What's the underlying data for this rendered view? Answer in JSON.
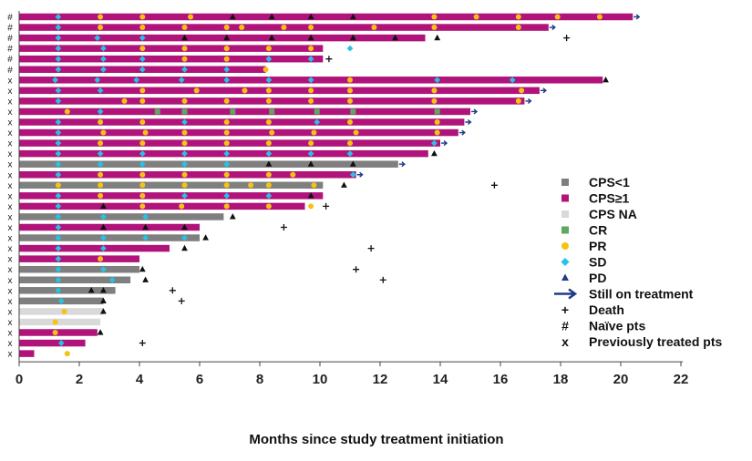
{
  "chart_data": {
    "type": "swimmer",
    "title": "",
    "xlabel": "Months since study treatment initiation",
    "ylabel": "",
    "xlim": [
      0,
      22
    ],
    "xticks": [
      0,
      2,
      4,
      6,
      8,
      10,
      12,
      14,
      16,
      18,
      20,
      22
    ],
    "grid": false,
    "legend_position": "right",
    "colors": {
      "cps_lt1": "#7f7f7f",
      "cps_ge1": "#b0137a",
      "cps_na": "#d9d9d9",
      "cr": "#5fa85f",
      "pr": "#f6c313",
      "sd": "#27c3e6",
      "pd": "#1f3c88",
      "arrow": "#1f3c88",
      "death": "#111111",
      "pd_on_bar": "#111111"
    },
    "legend": [
      {
        "key": "cps_lt1",
        "label": "CPS<1",
        "kind": "square"
      },
      {
        "key": "cps_ge1",
        "label": "CPS≥1",
        "kind": "square"
      },
      {
        "key": "cps_na",
        "label": "CPS NA",
        "kind": "square"
      },
      {
        "key": "cr",
        "label": "CR",
        "kind": "square"
      },
      {
        "key": "pr",
        "label": "PR",
        "kind": "circle"
      },
      {
        "key": "sd",
        "label": "SD",
        "kind": "diamond"
      },
      {
        "key": "pd",
        "label": "PD",
        "kind": "triangle"
      },
      {
        "key": "arrow",
        "label": "Still on treatment",
        "kind": "arrow"
      },
      {
        "key": "death",
        "label": "Death",
        "kind": "plus",
        "symbol": "+"
      },
      {
        "key": "naive",
        "label": "Naïve pts",
        "kind": "text",
        "symbol": "#"
      },
      {
        "key": "prev",
        "label": "Previously treated pts",
        "kind": "text",
        "symbol": "x"
      }
    ],
    "patients": [
      {
        "label": "#",
        "cps": "cps_ge1",
        "end": 20.4,
        "ongoing": true,
        "death": null,
        "events": [
          [
            "sd",
            1.3
          ],
          [
            "pr",
            2.7
          ],
          [
            "pr",
            4.1
          ],
          [
            "pr",
            5.7
          ],
          [
            "pd",
            7.1
          ],
          [
            "pd",
            8.4
          ],
          [
            "pd",
            9.7
          ],
          [
            "pd",
            11.1
          ],
          [
            "pr",
            13.8
          ],
          [
            "pr",
            15.2
          ],
          [
            "pr",
            16.6
          ],
          [
            "pr",
            17.9
          ],
          [
            "pr",
            19.3
          ]
        ]
      },
      {
        "label": "#",
        "cps": "cps_ge1",
        "end": 17.6,
        "ongoing": true,
        "death": null,
        "events": [
          [
            "sd",
            1.3
          ],
          [
            "pr",
            2.7
          ],
          [
            "pr",
            4.1
          ],
          [
            "pr",
            5.5
          ],
          [
            "pr",
            6.9
          ],
          [
            "pr",
            7.4
          ],
          [
            "pr",
            8.8
          ],
          [
            "pr",
            9.7
          ],
          [
            "pr",
            11.8
          ],
          [
            "pr",
            13.8
          ],
          [
            "pr",
            16.6
          ]
        ]
      },
      {
        "label": "#",
        "cps": "cps_ge1",
        "end": 13.5,
        "ongoing": false,
        "death": 18.2,
        "events": [
          [
            "sd",
            1.3
          ],
          [
            "sd",
            2.6
          ],
          [
            "sd",
            4.1
          ],
          [
            "pd",
            5.5
          ],
          [
            "pd",
            6.9
          ],
          [
            "pd",
            8.4
          ],
          [
            "pd",
            9.7
          ],
          [
            "pd",
            11.1
          ],
          [
            "pd",
            12.5
          ],
          [
            "pd",
            13.9
          ]
        ]
      },
      {
        "label": "#",
        "cps": "cps_ge1",
        "end": 10.1,
        "ongoing": false,
        "death": null,
        "events": [
          [
            "sd",
            1.3
          ],
          [
            "sd",
            2.8
          ],
          [
            "pr",
            4.1
          ],
          [
            "pr",
            5.5
          ],
          [
            "pr",
            6.9
          ],
          [
            "pr",
            8.3
          ],
          [
            "pr",
            9.7
          ],
          [
            "sd",
            11.0
          ]
        ]
      },
      {
        "label": "#",
        "cps": "cps_ge1",
        "end": 10.1,
        "ongoing": false,
        "death": 10.3,
        "events": [
          [
            "sd",
            1.3
          ],
          [
            "sd",
            2.8
          ],
          [
            "sd",
            4.1
          ],
          [
            "pr",
            5.5
          ],
          [
            "pr",
            6.9
          ],
          [
            "sd",
            8.3
          ],
          [
            "sd",
            9.7
          ]
        ]
      },
      {
        "label": "#",
        "cps": "cps_ge1",
        "end": 8.2,
        "ongoing": false,
        "death": null,
        "events": [
          [
            "sd",
            1.3
          ],
          [
            "sd",
            2.8
          ],
          [
            "sd",
            4.1
          ],
          [
            "sd",
            5.5
          ],
          [
            "sd",
            6.9
          ],
          [
            "pr",
            8.2
          ]
        ]
      },
      {
        "label": "x",
        "cps": "cps_ge1",
        "end": 19.4,
        "ongoing": false,
        "death": null,
        "events": [
          [
            "sd",
            1.2
          ],
          [
            "sd",
            2.6
          ],
          [
            "sd",
            3.9
          ],
          [
            "sd",
            5.4
          ],
          [
            "sd",
            6.9
          ],
          [
            "sd",
            8.3
          ],
          [
            "sd",
            9.7
          ],
          [
            "pr",
            11.0
          ],
          [
            "sd",
            13.9
          ],
          [
            "sd",
            16.4
          ],
          [
            "pd",
            19.5
          ]
        ]
      },
      {
        "label": "x",
        "cps": "cps_ge1",
        "end": 17.3,
        "ongoing": true,
        "death": null,
        "events": [
          [
            "sd",
            1.3
          ],
          [
            "sd",
            2.7
          ],
          [
            "pr",
            4.1
          ],
          [
            "pr",
            5.9
          ],
          [
            "pr",
            7.5
          ],
          [
            "pr",
            8.3
          ],
          [
            "pr",
            9.7
          ],
          [
            "pr",
            11.0
          ],
          [
            "pr",
            13.8
          ],
          [
            "pr",
            16.7
          ]
        ]
      },
      {
        "label": "x",
        "cps": "cps_ge1",
        "end": 16.8,
        "ongoing": true,
        "death": null,
        "events": [
          [
            "sd",
            1.3
          ],
          [
            "pr",
            3.5
          ],
          [
            "pr",
            4.1
          ],
          [
            "pr",
            5.5
          ],
          [
            "pr",
            6.9
          ],
          [
            "pr",
            8.3
          ],
          [
            "pr",
            9.7
          ],
          [
            "pr",
            11.0
          ],
          [
            "pr",
            13.8
          ],
          [
            "pr",
            16.6
          ]
        ]
      },
      {
        "label": "x",
        "cps": "cps_ge1",
        "end": 15.0,
        "ongoing": true,
        "death": null,
        "events": [
          [
            "pr",
            1.6
          ],
          [
            "sd",
            2.7
          ],
          [
            "cr",
            4.6
          ],
          [
            "cr",
            5.5
          ],
          [
            "cr",
            7.1
          ],
          [
            "cr",
            8.4
          ],
          [
            "cr",
            9.9
          ],
          [
            "cr",
            11.1
          ],
          [
            "cr",
            13.9
          ]
        ]
      },
      {
        "label": "x",
        "cps": "cps_ge1",
        "end": 14.8,
        "ongoing": true,
        "death": null,
        "events": [
          [
            "sd",
            1.3
          ],
          [
            "pr",
            2.7
          ],
          [
            "pr",
            4.1
          ],
          [
            "sd",
            5.5
          ],
          [
            "pr",
            6.9
          ],
          [
            "pr",
            8.3
          ],
          [
            "sd",
            9.9
          ],
          [
            "pr",
            11.0
          ],
          [
            "pr",
            13.9
          ]
        ]
      },
      {
        "label": "x",
        "cps": "cps_ge1",
        "end": 14.6,
        "ongoing": true,
        "death": null,
        "events": [
          [
            "sd",
            1.3
          ],
          [
            "pr",
            2.8
          ],
          [
            "pr",
            4.2
          ],
          [
            "pr",
            5.5
          ],
          [
            "pr",
            6.9
          ],
          [
            "pr",
            8.4
          ],
          [
            "pr",
            9.8
          ],
          [
            "pr",
            11.2
          ],
          [
            "pr",
            13.9
          ]
        ]
      },
      {
        "label": "x",
        "cps": "cps_ge1",
        "end": 14.0,
        "ongoing": true,
        "death": null,
        "events": [
          [
            "sd",
            1.3
          ],
          [
            "pr",
            2.7
          ],
          [
            "pr",
            4.1
          ],
          [
            "pr",
            5.5
          ],
          [
            "pr",
            6.9
          ],
          [
            "pr",
            8.3
          ],
          [
            "pr",
            9.7
          ],
          [
            "pr",
            11.0
          ],
          [
            "sd",
            13.8
          ]
        ]
      },
      {
        "label": "x",
        "cps": "cps_ge1",
        "end": 13.6,
        "ongoing": false,
        "death": null,
        "events": [
          [
            "sd",
            1.3
          ],
          [
            "sd",
            2.7
          ],
          [
            "sd",
            4.1
          ],
          [
            "sd",
            5.5
          ],
          [
            "sd",
            6.9
          ],
          [
            "sd",
            8.3
          ],
          [
            "sd",
            9.7
          ],
          [
            "sd",
            11.0
          ],
          [
            "pd",
            13.8
          ]
        ]
      },
      {
        "label": "x",
        "cps": "cps_lt1",
        "end": 12.6,
        "ongoing": true,
        "death": null,
        "events": [
          [
            "sd",
            1.3
          ],
          [
            "sd",
            2.7
          ],
          [
            "sd",
            4.1
          ],
          [
            "sd",
            5.5
          ],
          [
            "sd",
            6.9
          ],
          [
            "pd",
            8.3
          ],
          [
            "pd",
            9.7
          ],
          [
            "pd",
            11.1
          ]
        ]
      },
      {
        "label": "x",
        "cps": "cps_ge1",
        "end": 11.2,
        "ongoing": true,
        "death": null,
        "events": [
          [
            "sd",
            1.3
          ],
          [
            "pr",
            2.7
          ],
          [
            "pr",
            4.1
          ],
          [
            "pr",
            5.5
          ],
          [
            "pr",
            6.9
          ],
          [
            "pr",
            8.3
          ],
          [
            "pr",
            9.1
          ],
          [
            "sd",
            11.1
          ]
        ]
      },
      {
        "label": "x",
        "cps": "cps_lt1",
        "end": 10.1,
        "ongoing": false,
        "death": 15.8,
        "events": [
          [
            "pr",
            1.3
          ],
          [
            "pr",
            2.7
          ],
          [
            "pr",
            4.1
          ],
          [
            "pr",
            5.5
          ],
          [
            "pr",
            6.9
          ],
          [
            "pr",
            7.7
          ],
          [
            "pr",
            8.3
          ],
          [
            "pr",
            9.8
          ],
          [
            "pd",
            10.8
          ]
        ]
      },
      {
        "label": "x",
        "cps": "cps_ge1",
        "end": 10.1,
        "ongoing": false,
        "death": null,
        "events": [
          [
            "sd",
            1.3
          ],
          [
            "pr",
            2.7
          ],
          [
            "pr",
            4.1
          ],
          [
            "sd",
            5.5
          ],
          [
            "sd",
            6.9
          ],
          [
            "sd",
            8.3
          ],
          [
            "pd",
            9.7
          ]
        ]
      },
      {
        "label": "x",
        "cps": "cps_ge1",
        "end": 9.5,
        "ongoing": false,
        "death": 10.2,
        "events": [
          [
            "sd",
            1.3
          ],
          [
            "pd",
            2.8
          ],
          [
            "pr",
            4.1
          ],
          [
            "pr",
            5.4
          ],
          [
            "pr",
            6.9
          ],
          [
            "pr",
            8.3
          ],
          [
            "pr",
            9.7
          ]
        ]
      },
      {
        "label": "x",
        "cps": "cps_lt1",
        "end": 6.8,
        "ongoing": false,
        "death": null,
        "events": [
          [
            "sd",
            1.3
          ],
          [
            "sd",
            2.8
          ],
          [
            "sd",
            4.2
          ],
          [
            "pd",
            7.1
          ]
        ]
      },
      {
        "label": "x",
        "cps": "cps_ge1",
        "end": 6.0,
        "ongoing": false,
        "death": 8.8,
        "events": [
          [
            "sd",
            1.3
          ],
          [
            "pd",
            2.8
          ],
          [
            "pd",
            4.2
          ],
          [
            "pd",
            5.5
          ]
        ]
      },
      {
        "label": "x",
        "cps": "cps_lt1",
        "end": 6.0,
        "ongoing": false,
        "death": null,
        "events": [
          [
            "sd",
            1.3
          ],
          [
            "sd",
            2.8
          ],
          [
            "sd",
            4.2
          ],
          [
            "sd",
            5.5
          ],
          [
            "pd",
            6.2
          ]
        ]
      },
      {
        "label": "x",
        "cps": "cps_ge1",
        "end": 5.0,
        "ongoing": false,
        "death": 11.7,
        "events": [
          [
            "sd",
            1.3
          ],
          [
            "sd",
            2.8
          ],
          [
            "pd",
            5.5
          ]
        ]
      },
      {
        "label": "x",
        "cps": "cps_ge1",
        "end": 4.0,
        "ongoing": false,
        "death": null,
        "events": [
          [
            "sd",
            1.3
          ],
          [
            "pr",
            2.7
          ]
        ]
      },
      {
        "label": "x",
        "cps": "cps_lt1",
        "end": 4.0,
        "ongoing": false,
        "death": 11.2,
        "events": [
          [
            "sd",
            1.3
          ],
          [
            "sd",
            2.8
          ],
          [
            "pd",
            4.1
          ]
        ]
      },
      {
        "label": "x",
        "cps": "cps_lt1",
        "end": 3.7,
        "ongoing": false,
        "death": 12.1,
        "events": [
          [
            "sd",
            1.3
          ],
          [
            "sd",
            3.1
          ],
          [
            "pd",
            4.2
          ]
        ]
      },
      {
        "label": "x",
        "cps": "cps_lt1",
        "end": 3.2,
        "ongoing": false,
        "death": 5.1,
        "events": [
          [
            "sd",
            1.3
          ],
          [
            "pd",
            2.4
          ],
          [
            "pd",
            2.8
          ]
        ]
      },
      {
        "label": "x",
        "cps": "cps_lt1",
        "end": 2.8,
        "ongoing": false,
        "death": 5.4,
        "events": [
          [
            "sd",
            1.4
          ],
          [
            "pd",
            2.8
          ]
        ]
      },
      {
        "label": "x",
        "cps": "cps_na",
        "end": 2.8,
        "ongoing": false,
        "death": null,
        "events": [
          [
            "pr",
            1.5
          ],
          [
            "pd",
            2.8
          ]
        ]
      },
      {
        "label": "x",
        "cps": "cps_na",
        "end": 2.7,
        "ongoing": false,
        "death": null,
        "events": [
          [
            "pr",
            1.2
          ]
        ]
      },
      {
        "label": "x",
        "cps": "cps_ge1",
        "end": 2.6,
        "ongoing": false,
        "death": null,
        "events": [
          [
            "pr",
            1.2
          ],
          [
            "pd",
            2.7
          ]
        ]
      },
      {
        "label": "x",
        "cps": "cps_ge1",
        "end": 2.2,
        "ongoing": false,
        "death": 4.1,
        "events": [
          [
            "sd",
            1.4
          ]
        ]
      },
      {
        "label": "x",
        "cps": "cps_ge1",
        "end": 0.5,
        "ongoing": false,
        "death": null,
        "events": [
          [
            "pr",
            1.6
          ]
        ]
      }
    ]
  }
}
